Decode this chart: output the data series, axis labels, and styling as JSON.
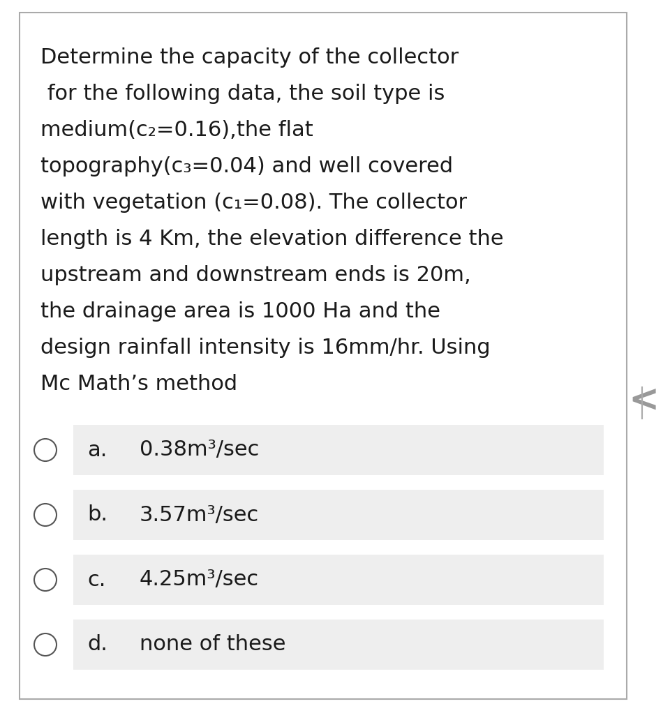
{
  "question_lines": [
    "Determine the capacity of the collector",
    " for the following data, the soil type is",
    "medium(c₂=0.16),the flat",
    "topography(c₃=0.04) and well covered",
    "with vegetation (c₁=0.08). The collector",
    "length is 4 Km, the elevation difference the",
    "upstream and downstream ends is 20m,",
    "the drainage area is 1000 Ha and the",
    "design rainfall intensity is 16mm/hr. Using",
    "Mc Math’s method"
  ],
  "options": [
    {
      "label": "a.",
      "text": "0.38m³/sec"
    },
    {
      "label": "b.",
      "text": "3.57m³/sec"
    },
    {
      "label": "c.",
      "text": "4.25m³/sec"
    },
    {
      "label": "d.",
      "text": "none of these"
    }
  ],
  "bg_color": "#ffffff",
  "border_color": "#aaaaaa",
  "option_bg_color": "#eeeeee",
  "text_color": "#1a1a1a",
  "question_fontsize": 22,
  "option_fontsize": 22,
  "label_fontsize": 22,
  "chevron_color": "#999999",
  "circle_color": "#555555"
}
